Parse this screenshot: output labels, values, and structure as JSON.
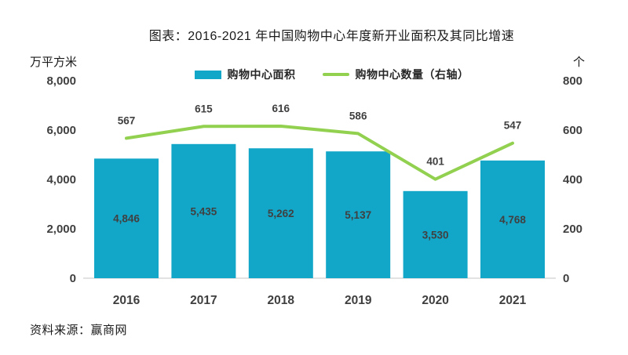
{
  "chart_data": {
    "type": "combo",
    "title": "图表：2016-2021 年中国购物中心年度新开业面积及其同比增速",
    "categories": [
      "2016",
      "2017",
      "2018",
      "2019",
      "2020",
      "2021"
    ],
    "series": [
      {
        "name": "购物中心面积",
        "type": "bar",
        "axis": "left",
        "values": [
          4846,
          5435,
          5262,
          5137,
          3530,
          4768
        ],
        "color": "#12A6C9"
      },
      {
        "name": "购物中心数量（右轴）",
        "type": "line",
        "axis": "right",
        "values": [
          567,
          615,
          616,
          586,
          401,
          547
        ],
        "color": "#92D050"
      }
    ],
    "left_axis": {
      "unit": "万平方米",
      "ticks": [
        0,
        2000,
        4000,
        6000,
        8000
      ],
      "range": [
        0,
        8000
      ]
    },
    "right_axis": {
      "unit": "个",
      "ticks": [
        0,
        200,
        400,
        600,
        800
      ],
      "range": [
        0,
        800
      ]
    },
    "legend_position": "top",
    "gridlines": false,
    "data_labels": true
  },
  "footer": {
    "source": "资料来源：赢商网"
  },
  "colors": {
    "bar": "#12A6C9",
    "line": "#92D050",
    "label_text": "#404040",
    "tick_text": "#3f3f3f",
    "baseline": "#d9d9d9"
  }
}
